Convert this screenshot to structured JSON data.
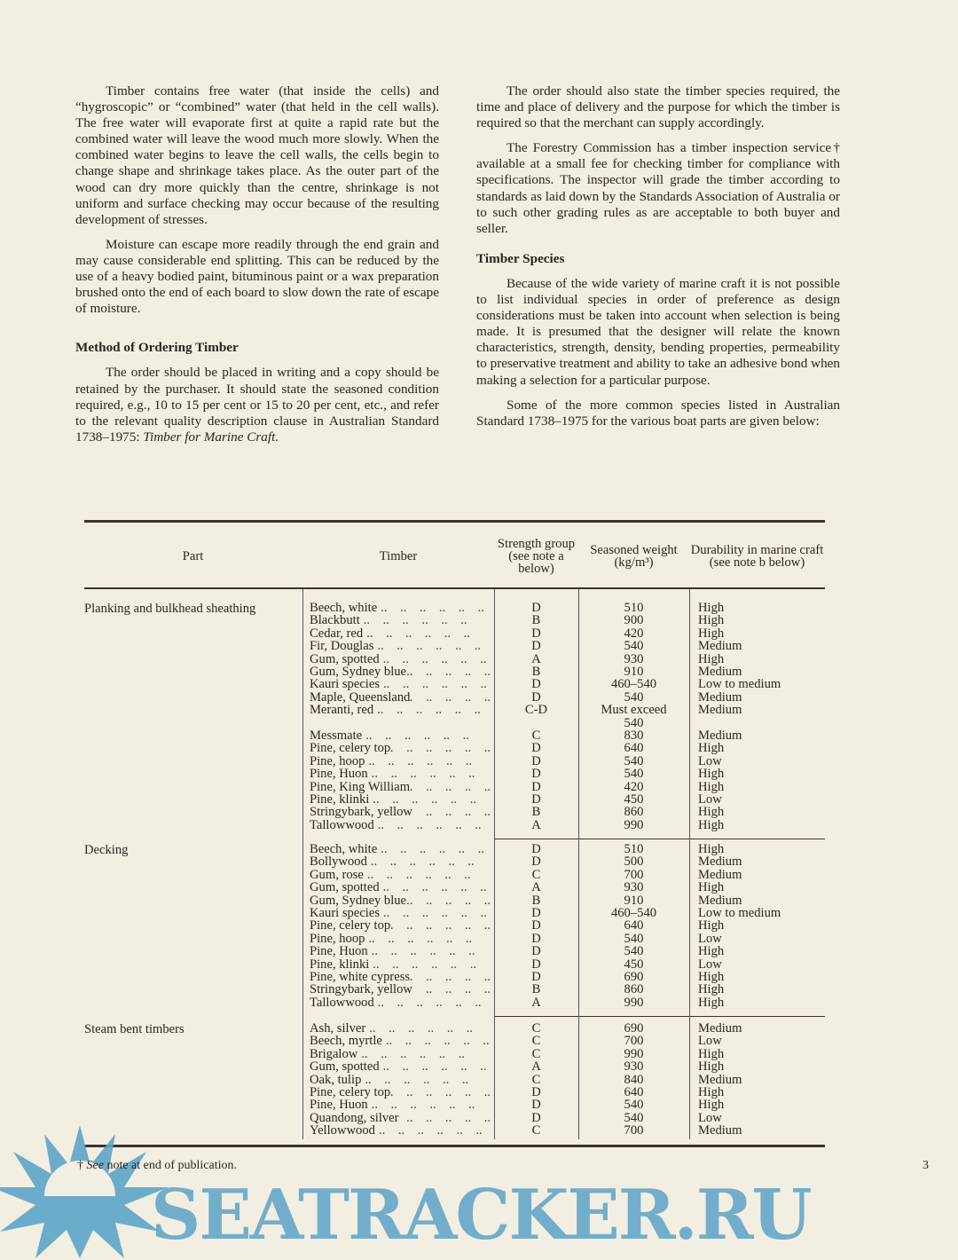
{
  "left_column": {
    "paragraphs": [
      "Timber contains free water (that inside the cells) and “hygroscopic” or “combined” water (that held in the cell walls). The free water will evaporate first at quite a rapid rate but the combined water will leave the wood much more slowly. When the combined water begins to leave the cell walls, the cells begin to change shape and shrinkage takes place. As the outer part of the wood can dry more quickly than the centre, shrinkage is not uniform and surface checking may occur because of the resulting development of stresses.",
      "Moisture can escape more readily through the end grain and may cause considerable end splitting. This can be reduced by the use of a heavy bodied paint, bituminous paint or a wax preparation brushed onto the end of each board to slow down the rate of escape of moisture."
    ],
    "heading": "Method of Ordering Timber",
    "p3": "The order should be placed in writing and a copy should be retained by the purchaser. It should state the seasoned condition required, e.g., 10 to 15 per cent or 15 to 20 per cent, etc., and refer to the relevant quality description clause in Australian Standard 1738–1975: ",
    "p3_italic": "Timber for Marine Craft."
  },
  "right_column": {
    "p1": "The order should also state the timber species required, the time and place of delivery and the purpose for which the timber is required so that the merchant can supply accordingly.",
    "p2": "The Forestry Commission has a timber inspection service† available at a small fee for checking timber for compliance with specifications. The inspector will grade the timber according to standards as laid down by the Standards Association of Australia or to such other grading rules as are acceptable to both buyer and seller.",
    "heading": "Timber Species",
    "p3": "Because of the wide variety of marine craft it is not possible to list individual species in order of preference as design considerations must be taken into account when selection is being made. It is presumed that the designer will relate the known characteristics, strength, density, bending properties, permeability to preservative treatment and ability to take an adhesive bond when making a selection for a particular purpose.",
    "p4": "Some of the more common species listed in Australian Standard 1738–1975 for the various boat parts are given below:"
  },
  "table": {
    "headers": [
      "Part",
      "Timber",
      "Strength group (see note a below)",
      "Seasoned weight (kg/m³)",
      "Durability in marine craft (see note b below)"
    ],
    "sections": [
      {
        "part": "Planking and bulkhead sheathing",
        "rows": [
          [
            "Beech, white",
            "D",
            "510",
            "High"
          ],
          [
            "Blackbutt",
            "B",
            "900",
            "High"
          ],
          [
            "Cedar, red",
            "D",
            "420",
            "High"
          ],
          [
            "Fir, Douglas",
            "D",
            "540",
            "Medium"
          ],
          [
            "Gum, spotted",
            "A",
            "930",
            "High"
          ],
          [
            "Gum, Sydney blue",
            "B",
            "910",
            "Medium"
          ],
          [
            "Kauri species",
            "D",
            "460–540",
            "Low to medium"
          ],
          [
            "Maple, Queensland",
            "D",
            "540",
            "Medium"
          ],
          [
            "Meranti, red",
            "C-D",
            "Must exceed 540",
            "Medium"
          ],
          [
            "Messmate",
            "C",
            "830",
            "Medium"
          ],
          [
            "Pine, celery top",
            "D",
            "640",
            "High"
          ],
          [
            "Pine, hoop",
            "D",
            "540",
            "Low"
          ],
          [
            "Pine, Huon",
            "D",
            "540",
            "High"
          ],
          [
            "Pine, King William",
            "D",
            "420",
            "High"
          ],
          [
            "Pine, klinki",
            "D",
            "450",
            "Low"
          ],
          [
            "Stringybark, yellow",
            "B",
            "860",
            "High"
          ],
          [
            "Tallowwood",
            "A",
            "990",
            "High"
          ]
        ]
      },
      {
        "part": "Decking",
        "rows": [
          [
            "Beech, white",
            "D",
            "510",
            "High"
          ],
          [
            "Bollywood",
            "D",
            "500",
            "Medium"
          ],
          [
            "Gum, rose",
            "C",
            "700",
            "Medium"
          ],
          [
            "Gum, spotted",
            "A",
            "930",
            "High"
          ],
          [
            "Gum, Sydney blue",
            "B",
            "910",
            "Medium"
          ],
          [
            "Kauri species",
            "D",
            "460–540",
            "Low to medium"
          ],
          [
            "Pine, celery top",
            "D",
            "640",
            "High"
          ],
          [
            "Pine, hoop",
            "D",
            "540",
            "Low"
          ],
          [
            "Pine, Huon",
            "D",
            "540",
            "High"
          ],
          [
            "Pine, klinki",
            "D",
            "450",
            "Low"
          ],
          [
            "Pine, white cypress",
            "D",
            "690",
            "High"
          ],
          [
            "Stringybark, yellow",
            "B",
            "860",
            "High"
          ],
          [
            "Tallowwood",
            "A",
            "990",
            "High"
          ]
        ]
      },
      {
        "part": "Steam bent timbers",
        "rows": [
          [
            "Ash, silver",
            "C",
            "690",
            "Medium"
          ],
          [
            "Beech, myrtle",
            "C",
            "700",
            "Low"
          ],
          [
            "Brigalow",
            "C",
            "990",
            "High"
          ],
          [
            "Gum, spotted",
            "A",
            "930",
            "High"
          ],
          [
            "Oak, tulip",
            "C",
            "840",
            "Medium"
          ],
          [
            "Pine, celery top",
            "D",
            "640",
            "High"
          ],
          [
            "Pine, Huon",
            "D",
            "540",
            "High"
          ],
          [
            "Quandong, silver",
            "D",
            "540",
            "Low"
          ],
          [
            "Yellowwood",
            "C",
            "700",
            "Medium"
          ]
        ]
      }
    ]
  },
  "footnote": {
    "mark": "† ",
    "italic": "See",
    "text": " note at end of publication."
  },
  "page_number": "3",
  "watermark": "SEATRACKER.RU",
  "colors": {
    "paper": "#f3eee2",
    "ink": "#2a2620",
    "watermark": "#5ca4c8"
  }
}
